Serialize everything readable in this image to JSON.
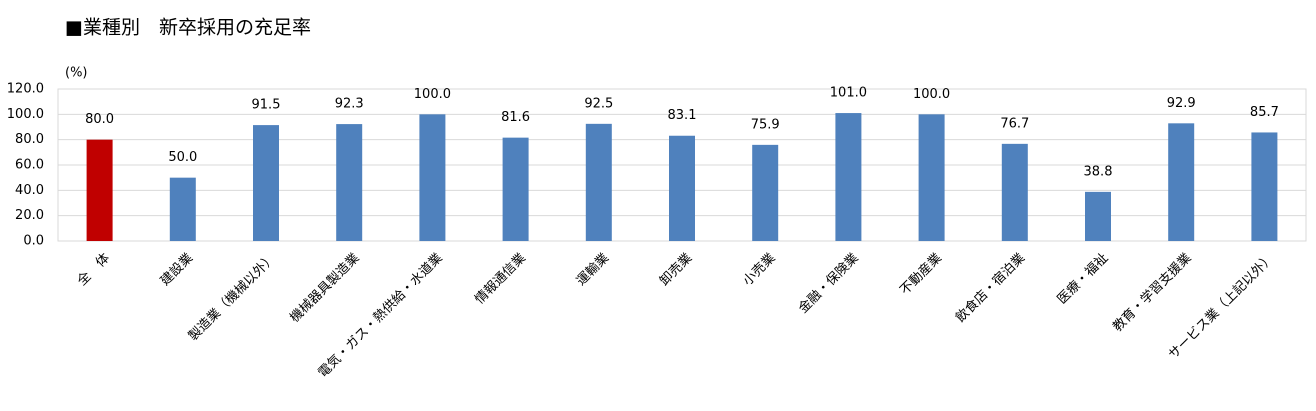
{
  "chart_data": {
    "type": "bar",
    "title": "■業種別　新卒採用の充足率",
    "y_label": "(%)",
    "categories": [
      "全　体",
      "建設業",
      "製造業（機械以外）",
      "機械器具製造業",
      "電気・ガス・熱供給・水道業",
      "情報通信業",
      "運輸業",
      "卸売業",
      "小売業",
      "金融・保険業",
      "不動産業",
      "飲食店・宿泊業",
      "医療・福祉",
      "教育・学習支援業",
      "サービス業（上記以外）"
    ],
    "values": [
      80.0,
      50.0,
      91.5,
      92.3,
      100.0,
      81.6,
      92.5,
      83.1,
      75.9,
      101.0,
      100.0,
      76.7,
      38.8,
      92.9,
      85.7
    ],
    "value_labels": [
      "80.0",
      "50.0",
      "91.5",
      "92.3",
      "100.0",
      "81.6",
      "92.5",
      "83.1",
      "75.9",
      "101.0",
      "100.0",
      "76.7",
      "38.8",
      "92.9",
      "85.7"
    ],
    "colors": [
      "#c00000",
      "#4f81bd",
      "#4f81bd",
      "#4f81bd",
      "#4f81bd",
      "#4f81bd",
      "#4f81bd",
      "#4f81bd",
      "#4f81bd",
      "#4f81bd",
      "#4f81bd",
      "#4f81bd",
      "#4f81bd",
      "#4f81bd",
      "#4f81bd"
    ],
    "ylim": [
      0,
      120
    ],
    "yticks": [
      {
        "value": 0,
        "label": "0.0"
      },
      {
        "value": 20,
        "label": "20.0"
      },
      {
        "value": 40,
        "label": "40.0"
      },
      {
        "value": 60,
        "label": "60.0"
      },
      {
        "value": 80,
        "label": "80.0"
      },
      {
        "value": 100,
        "label": "100.0"
      },
      {
        "value": 120,
        "label": "120.0"
      }
    ],
    "grid": true
  }
}
